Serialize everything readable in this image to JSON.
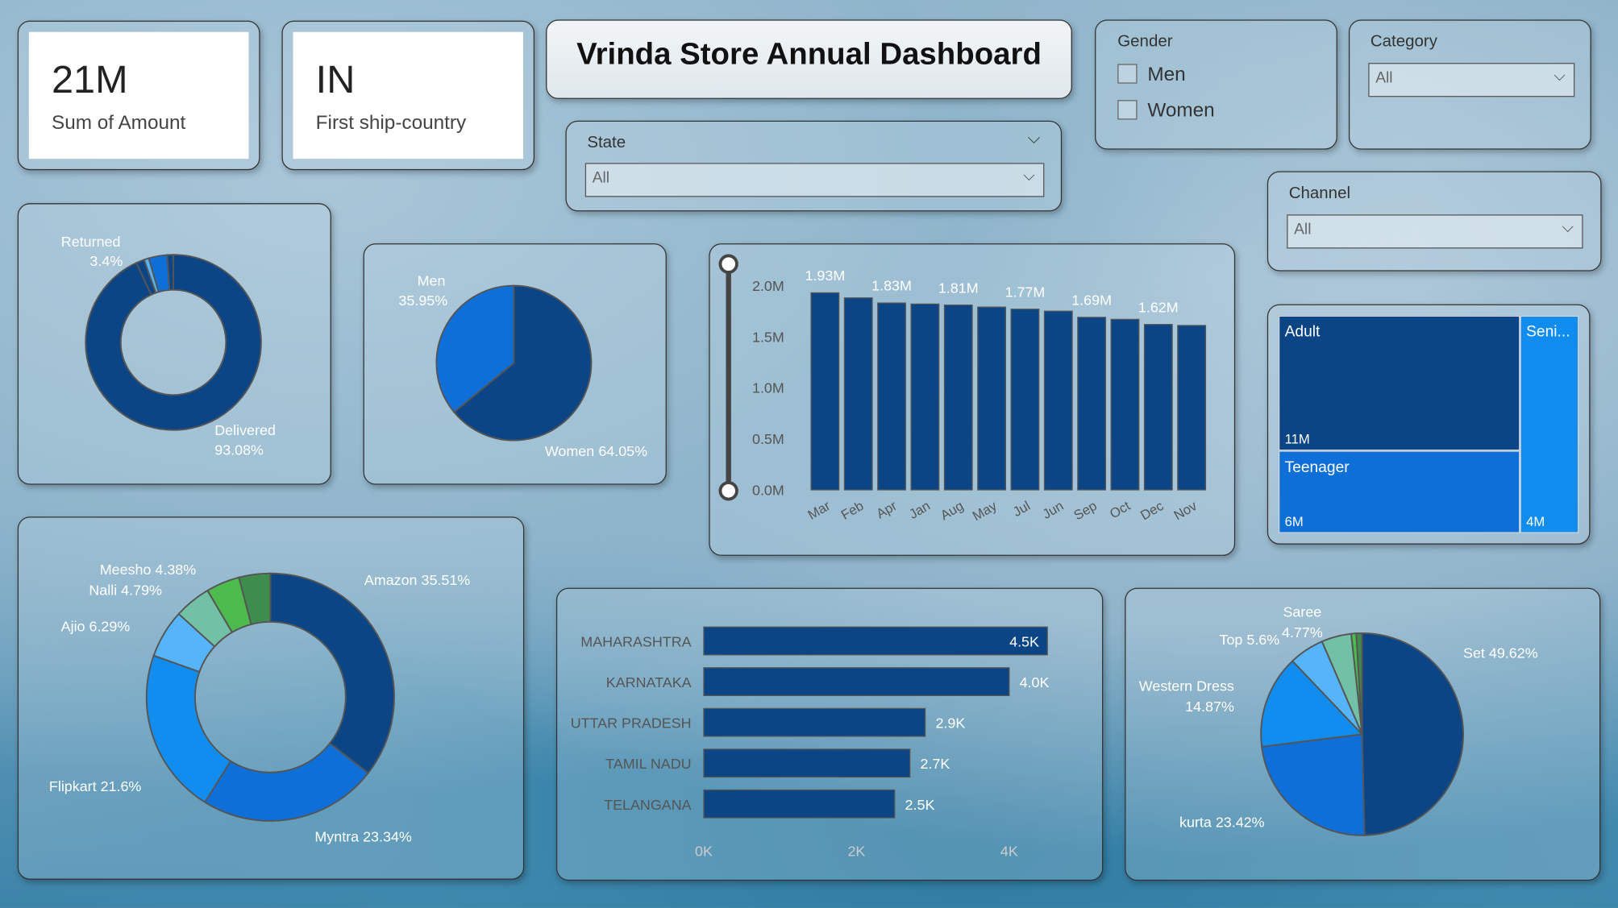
{
  "kpis": [
    {
      "value": "21M",
      "label": "Sum of Amount"
    },
    {
      "value": "IN",
      "label": "First ship-country"
    }
  ],
  "title": "Vrinda Store Annual Dashboard",
  "filters": {
    "state": {
      "label": "State",
      "value": "All"
    },
    "gender": {
      "label": "Gender",
      "options": [
        "Men",
        "Women"
      ]
    },
    "category": {
      "label": "Category",
      "value": "All"
    },
    "channel": {
      "label": "Channel",
      "value": "All"
    }
  },
  "colors": {
    "dark": "#0b4585",
    "mid": "#0f6fd8",
    "bright": "#118df0",
    "light": "#56b4fb",
    "teal": "#72c0a5",
    "green": "#4dbb4d",
    "darkgreen": "#3f8c4f"
  },
  "chart_data": [
    {
      "type": "pie",
      "name": "status-donut",
      "donut": true,
      "slices": [
        {
          "label": "Delivered",
          "display": "93.08%",
          "value": 93.08,
          "color": "#0b4585"
        },
        {
          "label": "",
          "display": "",
          "value": 1.5,
          "color": "#0b4585"
        },
        {
          "label": "",
          "display": "",
          "value": 0.9,
          "color": "#56b4fb"
        },
        {
          "label": "Returned",
          "display": "3.4%",
          "value": 3.4,
          "color": "#0f6fd8"
        },
        {
          "label": "",
          "display": "",
          "value": 1.12,
          "color": "#0b4585"
        }
      ]
    },
    {
      "type": "pie",
      "name": "gender-pie",
      "slices": [
        {
          "label": "Women",
          "display": "64.05%",
          "value": 64.05,
          "color": "#0b4585"
        },
        {
          "label": "Men",
          "display": "35.95%",
          "value": 35.95,
          "color": "#0f6fd8"
        }
      ]
    },
    {
      "type": "bar",
      "name": "monthly-amount",
      "categories": [
        "Mar",
        "Feb",
        "Apr",
        "Jan",
        "Aug",
        "May",
        "Jul",
        "Jun",
        "Sep",
        "Oct",
        "Dec",
        "Nov"
      ],
      "values": [
        1.93,
        1.88,
        1.83,
        1.82,
        1.81,
        1.79,
        1.77,
        1.75,
        1.69,
        1.67,
        1.62,
        1.61
      ],
      "data_labels": [
        "1.93M",
        "",
        "1.83M",
        "",
        "1.81M",
        "",
        "1.77M",
        "",
        "1.69M",
        "",
        "1.62M",
        ""
      ],
      "yticks": [
        "0.0M",
        "0.5M",
        "1.0M",
        "1.5M",
        "2.0M"
      ],
      "ylim": [
        0,
        2.0
      ],
      "unit": "M"
    },
    {
      "type": "pie",
      "name": "channel-donut",
      "donut": true,
      "slices": [
        {
          "label": "Amazon",
          "display": "Amazon 35.51%",
          "value": 35.51,
          "color": "#0b4585"
        },
        {
          "label": "Myntra",
          "display": "Myntra 23.34%",
          "value": 23.34,
          "color": "#0f6fd8"
        },
        {
          "label": "Flipkart",
          "display": "Flipkart 21.6%",
          "value": 21.6,
          "color": "#118df0"
        },
        {
          "label": "Ajio",
          "display": "Ajio 6.29%",
          "value": 6.29,
          "color": "#56b4fb"
        },
        {
          "label": "Nalli",
          "display": "Nalli 4.79%",
          "value": 4.79,
          "color": "#72c0a5"
        },
        {
          "label": "Meesho",
          "display": "Meesho 4.38%",
          "value": 4.38,
          "color": "#4dbb4d"
        },
        {
          "label": "",
          "display": "",
          "value": 4.09,
          "color": "#3f8c4f"
        }
      ]
    },
    {
      "type": "bar",
      "name": "top-states",
      "orientation": "horizontal",
      "categories": [
        "MAHARASHTRA",
        "KARNATAKA",
        "UTTAR PRADESH",
        "TAMIL NADU",
        "TELANGANA"
      ],
      "values": [
        4500,
        4000,
        2900,
        2700,
        2500
      ],
      "data_labels": [
        "4.5K",
        "4.0K",
        "2.9K",
        "2.7K",
        "2.5K"
      ],
      "xticks": [
        "0K",
        "2K",
        "4K"
      ],
      "xlim": [
        0,
        4000
      ]
    },
    {
      "type": "pie",
      "name": "category-pie",
      "slices": [
        {
          "label": "Set",
          "display": "Set 49.62%",
          "value": 49.62,
          "color": "#0b4585"
        },
        {
          "label": "kurta",
          "display": "kurta 23.42%",
          "value": 23.42,
          "color": "#0f6fd8"
        },
        {
          "label": "Western Dress",
          "display": "Western Dress 14.87%",
          "value": 14.87,
          "color": "#118df0"
        },
        {
          "label": "Top",
          "display": "Top 5.6%",
          "value": 5.6,
          "color": "#56b4fb"
        },
        {
          "label": "Saree",
          "display": "Saree 4.77%",
          "value": 4.77,
          "color": "#72c0a5"
        },
        {
          "label": "",
          "display": "",
          "value": 0.8,
          "color": "#4dbb4d"
        },
        {
          "label": "",
          "display": "",
          "value": 0.92,
          "color": "#3f8c4f"
        }
      ]
    }
  ],
  "treemap": [
    {
      "label": "Adult",
      "value": "11M"
    },
    {
      "label": "Teenager",
      "value": "6M"
    },
    {
      "label": "Seni...",
      "value": "4M"
    }
  ]
}
